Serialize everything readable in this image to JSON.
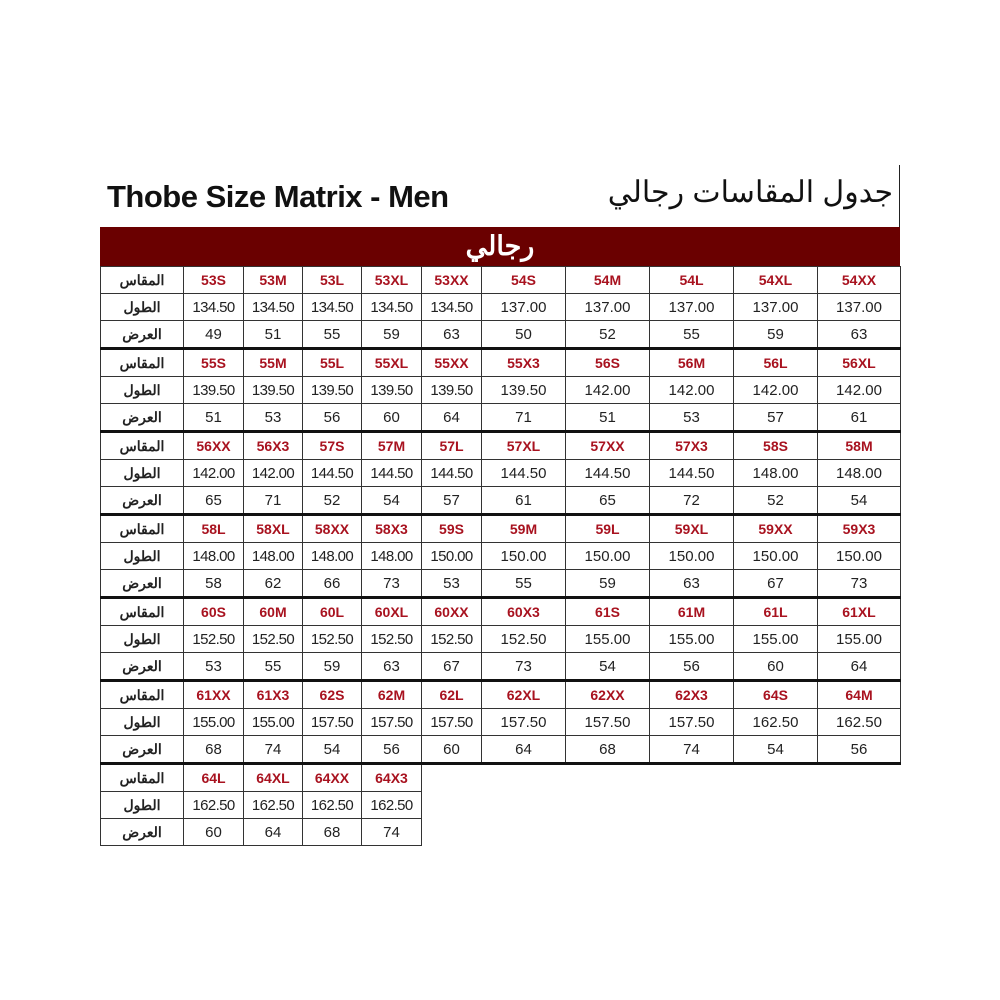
{
  "title_en": "Thobe Size Matrix - Men",
  "title_ar": "جدول المقاسات رجالي",
  "band_label": "رجالي",
  "colors": {
    "band": "#6a0000",
    "size_text": "#a8121f"
  },
  "row_labels": {
    "size": "المقاس",
    "length": "الطول",
    "width": "العرض"
  },
  "blocks": [
    {
      "sizes": [
        "53S",
        "53M",
        "53L",
        "53XL",
        "53XX",
        "54S",
        "54M",
        "54L",
        "54XL",
        "54XX"
      ],
      "lengths": [
        "134.50",
        "134.50",
        "134.50",
        "134.50",
        "134.50",
        "137.00",
        "137.00",
        "137.00",
        "137.00",
        "137.00"
      ],
      "widths": [
        "49",
        "51",
        "55",
        "59",
        "63",
        "50",
        "52",
        "55",
        "59",
        "63"
      ]
    },
    {
      "sizes": [
        "55S",
        "55M",
        "55L",
        "55XL",
        "55XX",
        "55X3",
        "56S",
        "56M",
        "56L",
        "56XL"
      ],
      "lengths": [
        "139.50",
        "139.50",
        "139.50",
        "139.50",
        "139.50",
        "139.50",
        "142.00",
        "142.00",
        "142.00",
        "142.00"
      ],
      "widths": [
        "51",
        "53",
        "56",
        "60",
        "64",
        "71",
        "51",
        "53",
        "57",
        "61"
      ]
    },
    {
      "sizes": [
        "56XX",
        "56X3",
        "57S",
        "57M",
        "57L",
        "57XL",
        "57XX",
        "57X3",
        "58S",
        "58M"
      ],
      "lengths": [
        "142.00",
        "142.00",
        "144.50",
        "144.50",
        "144.50",
        "144.50",
        "144.50",
        "144.50",
        "148.00",
        "148.00"
      ],
      "widths": [
        "65",
        "71",
        "52",
        "54",
        "57",
        "61",
        "65",
        "72",
        "52",
        "54"
      ]
    },
    {
      "sizes": [
        "58L",
        "58XL",
        "58XX",
        "58X3",
        "59S",
        "59M",
        "59L",
        "59XL",
        "59XX",
        "59X3"
      ],
      "lengths": [
        "148.00",
        "148.00",
        "148.00",
        "148.00",
        "150.00",
        "150.00",
        "150.00",
        "150.00",
        "150.00",
        "150.00"
      ],
      "widths": [
        "58",
        "62",
        "66",
        "73",
        "53",
        "55",
        "59",
        "63",
        "67",
        "73"
      ]
    },
    {
      "sizes": [
        "60S",
        "60M",
        "60L",
        "60XL",
        "60XX",
        "60X3",
        "61S",
        "61M",
        "61L",
        "61XL"
      ],
      "lengths": [
        "152.50",
        "152.50",
        "152.50",
        "152.50",
        "152.50",
        "152.50",
        "155.00",
        "155.00",
        "155.00",
        "155.00"
      ],
      "widths": [
        "53",
        "55",
        "59",
        "63",
        "67",
        "73",
        "54",
        "56",
        "60",
        "64"
      ]
    },
    {
      "sizes": [
        "61XX",
        "61X3",
        "62S",
        "62M",
        "62L",
        "62XL",
        "62XX",
        "62X3",
        "64S",
        "64M"
      ],
      "lengths": [
        "155.00",
        "155.00",
        "157.50",
        "157.50",
        "157.50",
        "157.50",
        "157.50",
        "157.50",
        "162.50",
        "162.50"
      ],
      "widths": [
        "68",
        "74",
        "54",
        "56",
        "60",
        "64",
        "68",
        "74",
        "54",
        "56"
      ]
    },
    {
      "sizes": [
        "64L",
        "64XL",
        "64XX",
        "64X3"
      ],
      "lengths": [
        "162.50",
        "162.50",
        "162.50",
        "162.50"
      ],
      "widths": [
        "60",
        "64",
        "68",
        "74"
      ]
    }
  ]
}
